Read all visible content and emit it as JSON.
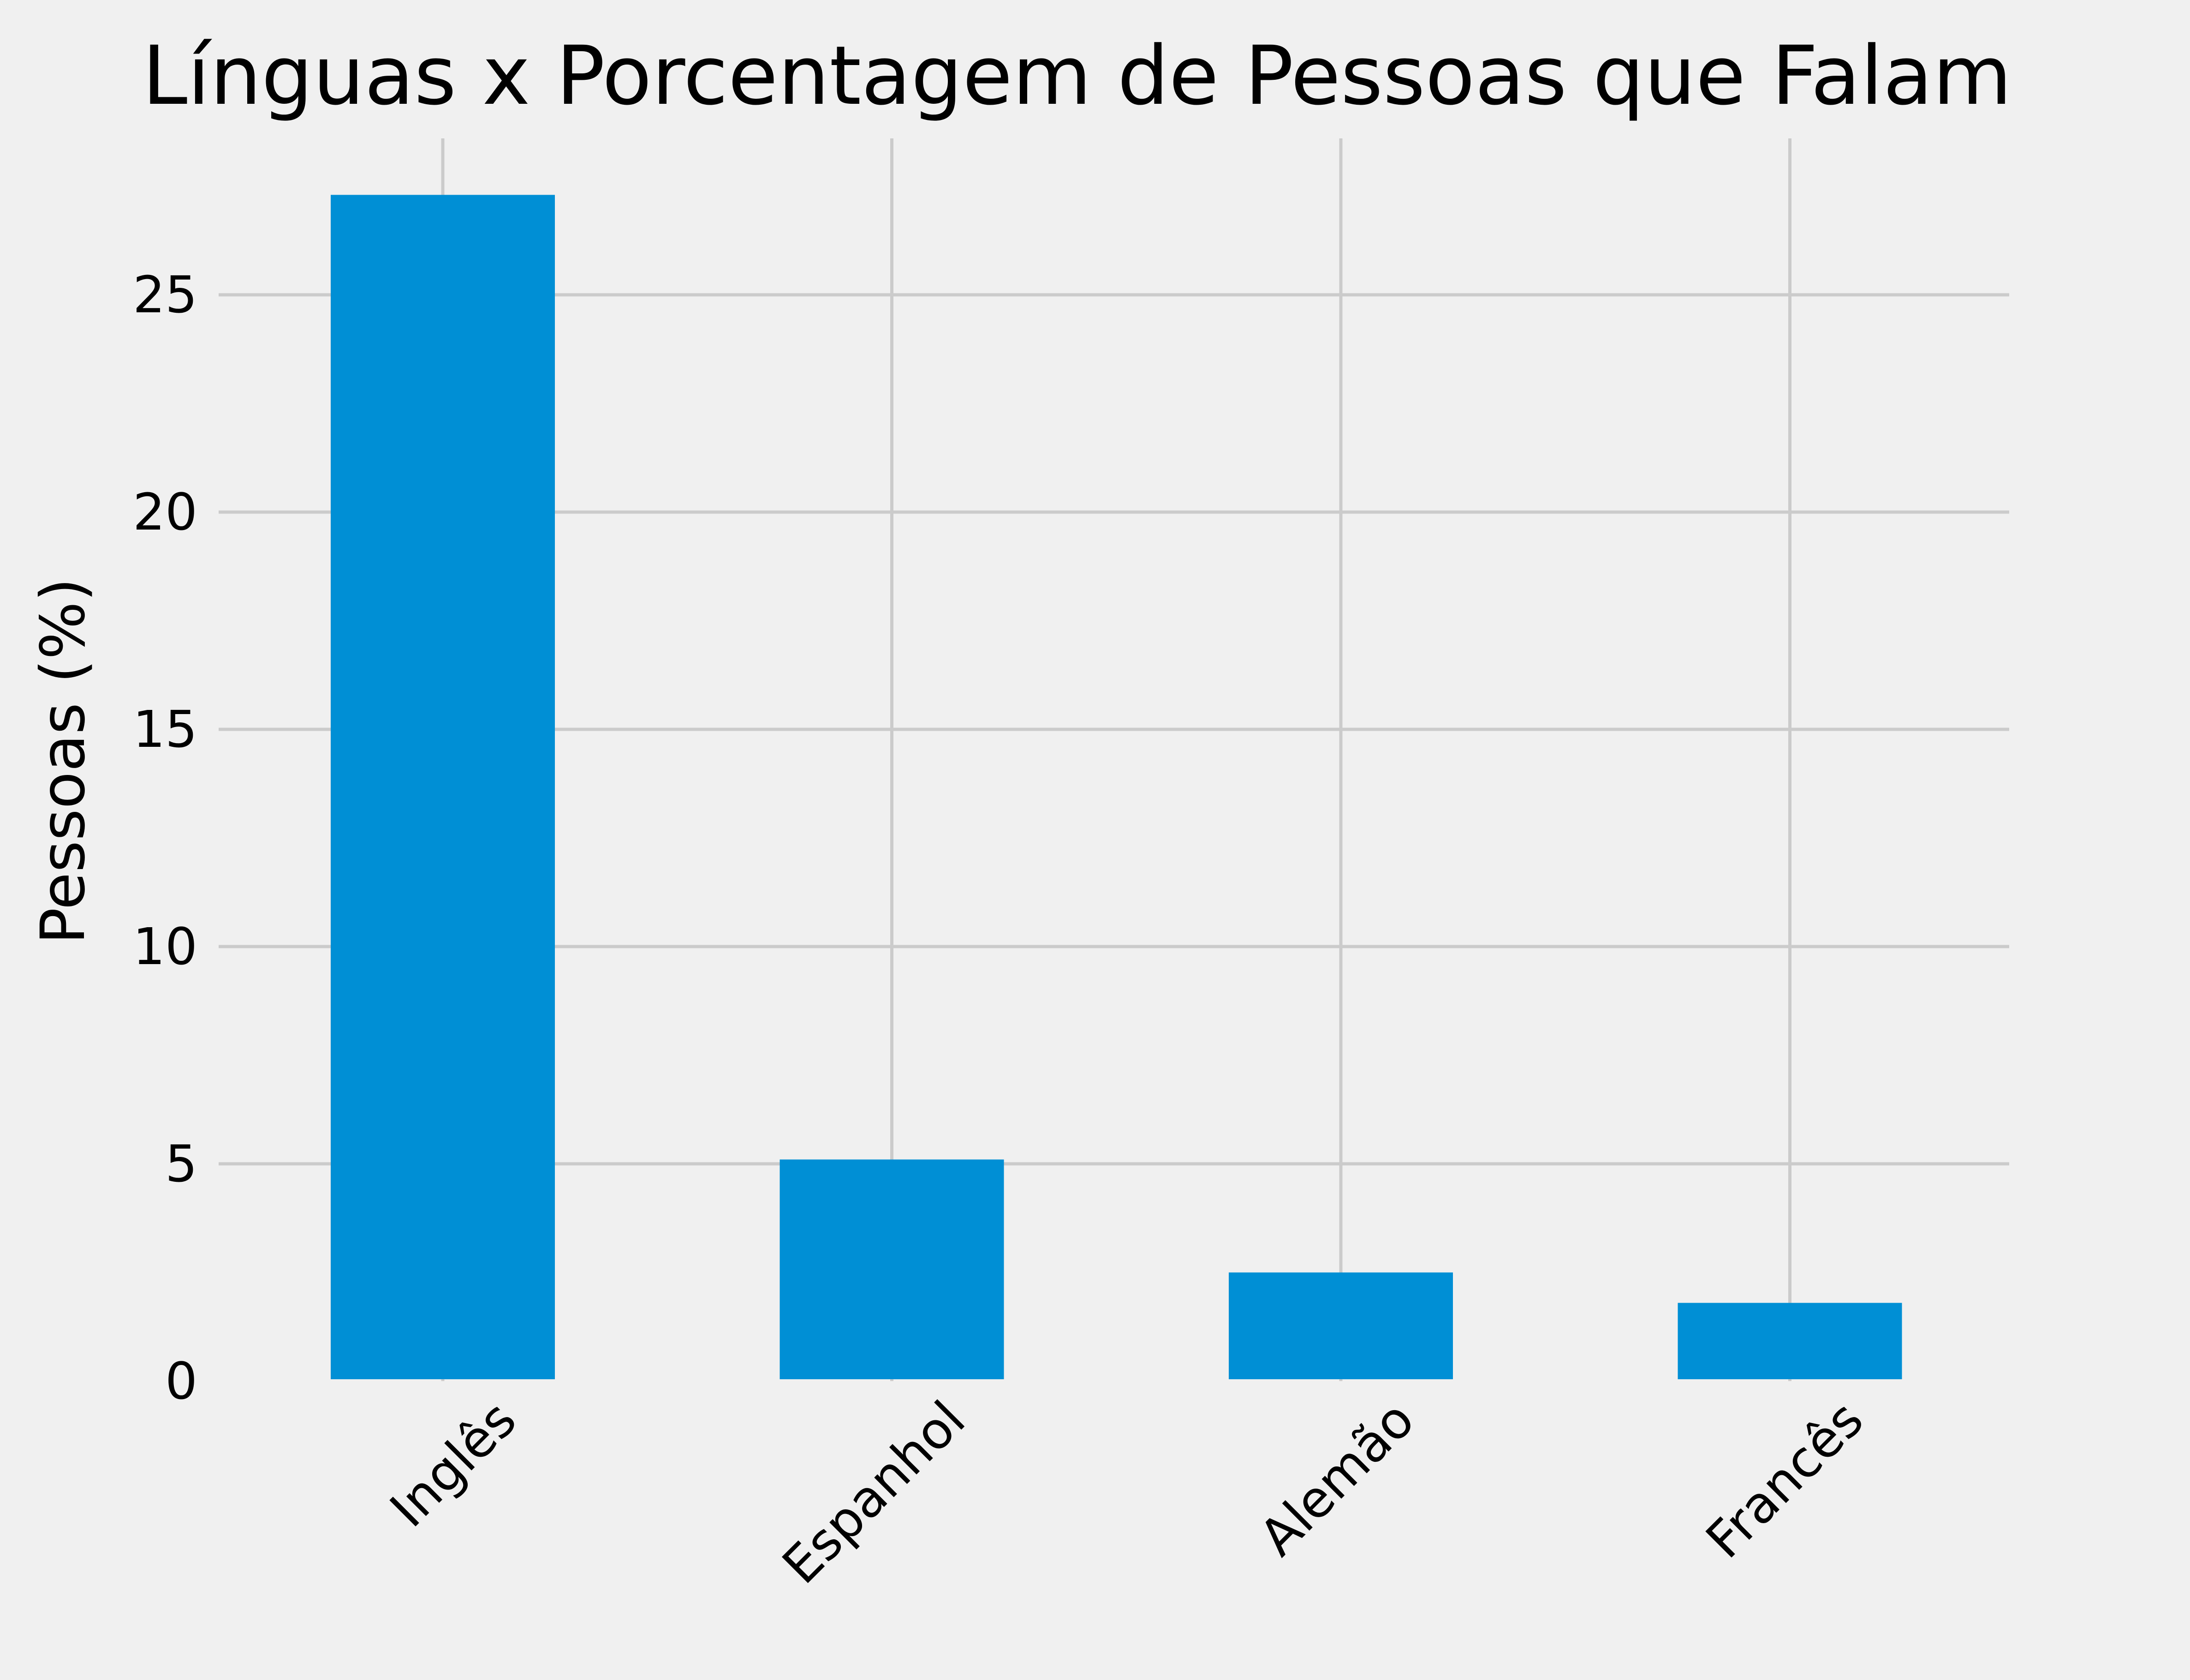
{
  "chart_data": {
    "type": "bar",
    "title": "Línguas x Porcentagem de Pessoas que Falam",
    "xlabel": "",
    "ylabel": "Pessoas (%)",
    "categories": [
      "Inglês",
      "Espanhol",
      "Alemão",
      "Francês"
    ],
    "values": [
      27.3,
      5.1,
      2.5,
      1.8
    ],
    "ylim": [
      0,
      28.6
    ],
    "yticks": [
      0,
      5,
      10,
      15,
      20,
      25
    ],
    "ytick_labels": [
      "0",
      "5",
      "10",
      "15",
      "20",
      "25"
    ],
    "grid": true,
    "legend": "none",
    "colors": {
      "bar": "#008fd5",
      "background": "#f0f0f0",
      "grid": "#cbcbcb",
      "text": "#000000"
    }
  }
}
